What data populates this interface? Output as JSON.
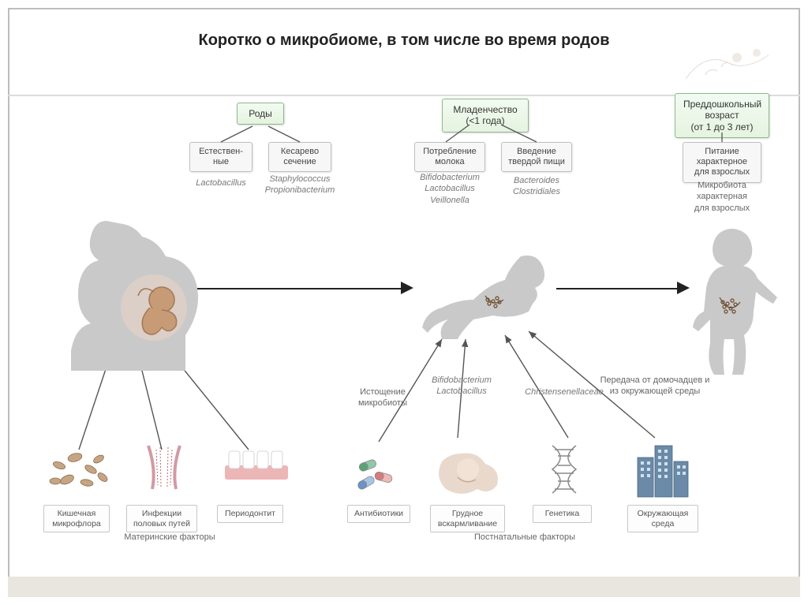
{
  "title": "Коротко о микробиоме, в том числе во время родов",
  "colors": {
    "green_box_bg": "#e6f3e0",
    "green_box_border": "#8bb98a",
    "gray_box_bg": "#f7f7f7",
    "gray_box_border": "#bfbfbf",
    "silhouette": "#c9c9c9",
    "arrow": "#222222",
    "frame": "#bdbdbd"
  },
  "stages": {
    "birth": {
      "label": "Роды",
      "sub1": {
        "box": "Естествен-\nные",
        "bacteria": "Lactobacillus"
      },
      "sub2": {
        "box": "Кесарево\nсечение",
        "bacteria": "Staphylococcus\nPropionibacterium"
      }
    },
    "infancy": {
      "label": "Младенчество\n(<1 года)",
      "sub1": {
        "box": "Потребление\nмолока",
        "bacteria": "Bifidobacterium\nLactobacillus\nVeillonella"
      },
      "sub2": {
        "box": "Введение\nтвердой пищи",
        "bacteria": "Bacteroides\nClostridiales"
      }
    },
    "preschool": {
      "label": "Преддошкольный\nвозраст\n(от 1 до 3 лет)",
      "sub1": {
        "box": "Питание\nхарактерное\nдля взрослых",
        "bacteria": "Микробиота\nхарактерная\nдля взрослых"
      }
    }
  },
  "maternal_factors": {
    "section": "Материнские факторы",
    "items": [
      {
        "label": "Кишечная\nмикрофлора"
      },
      {
        "label": "Инфекции\nполовых путей"
      },
      {
        "label": "Периодонтит"
      }
    ]
  },
  "postnatal_factors": {
    "section": "Постнатальные факторы",
    "items": [
      {
        "label": "Антибиотики",
        "note": "Истощение\nмикробиоты"
      },
      {
        "label": "Грудное\nвскармливание",
        "note": "Bifidobacterium\nLactobacillus"
      },
      {
        "label": "Генетика",
        "note": "Christensenellaceae"
      },
      {
        "label": "Окружающая\nсреда",
        "note": "Передача от домочадцев и\nиз окружающей среды"
      }
    ]
  }
}
